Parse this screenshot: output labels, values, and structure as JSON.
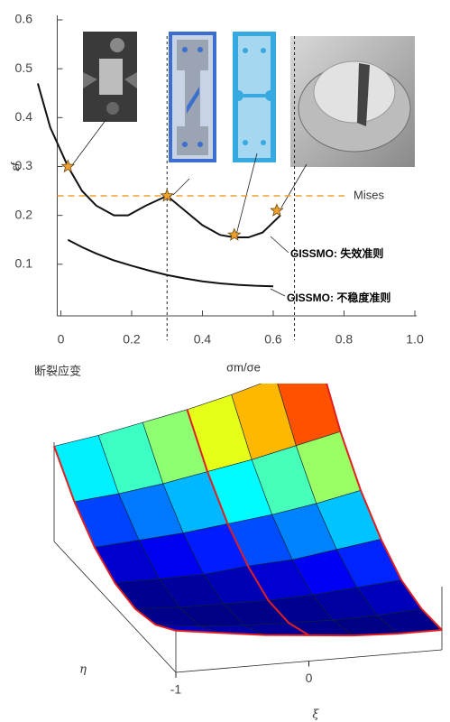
{
  "chart_data": [
    {
      "type": "line",
      "ylabel": "εf",
      "xlabel": "σm/σe",
      "caption": "断裂应变",
      "xlim": [
        -0.07,
        1.0
      ],
      "ylim": [
        0,
        0.6
      ],
      "xticks": [
        0,
        0.2,
        0.4,
        0.6,
        0.8,
        {
          "value": 1,
          "label": "1.0"
        }
      ],
      "yticks": [
        0.1,
        0.2,
        0.3,
        0.4,
        0.5,
        0.6
      ],
      "series": [
        {
          "name": "GISSMO: 失效准则",
          "color": "#111111",
          "x": [
            -0.065,
            -0.03,
            0.02,
            0.06,
            0.1,
            0.15,
            0.19,
            0.24,
            0.3,
            0.35,
            0.4,
            0.45,
            0.49,
            0.53,
            0.57,
            0.62
          ],
          "values": [
            0.47,
            0.38,
            0.3,
            0.25,
            0.22,
            0.2,
            0.2,
            0.22,
            0.24,
            0.21,
            0.18,
            0.16,
            0.155,
            0.155,
            0.165,
            0.2
          ]
        },
        {
          "name": "GISSMO: 不稳度准则",
          "color": "#111111",
          "x": [
            0.02,
            0.06,
            0.1,
            0.15,
            0.2,
            0.25,
            0.3,
            0.35,
            0.4,
            0.45,
            0.5,
            0.55,
            0.6
          ],
          "values": [
            0.15,
            0.135,
            0.122,
            0.108,
            0.097,
            0.087,
            0.078,
            0.071,
            0.065,
            0.061,
            0.058,
            0.056,
            0.055
          ]
        }
      ],
      "stars": {
        "color": "#f0a030",
        "x": [
          0.02,
          0.3,
          0.49,
          0.61
        ],
        "values": [
          0.3,
          0.24,
          0.16,
          0.21
        ]
      },
      "mises": {
        "label": "Mises",
        "value": 0.24,
        "color": "#f0a030"
      },
      "vlines": [
        0.3,
        0.66
      ]
    },
    {
      "type": "surface",
      "xlabel": "ξ",
      "ylabel": "η",
      "xlim": [
        -1,
        1
      ],
      "xticks": [
        -1,
        0
      ],
      "z": [
        [
          0.21,
          0.18,
          0.15,
          0.13,
          0.11,
          0.1,
          0.1
        ],
        [
          0.13,
          0.11,
          0.1,
          0.1,
          0.1,
          0.11,
          0.13
        ],
        [
          0.1,
          0.1,
          0.11,
          0.12,
          0.14,
          0.17,
          0.2
        ],
        [
          0.12,
          0.14,
          0.16,
          0.2,
          0.23,
          0.28,
          0.33
        ],
        [
          0.19,
          0.23,
          0.27,
          0.32,
          0.37,
          0.43,
          0.5
        ],
        [
          0.31,
          0.36,
          0.42,
          0.49,
          0.56,
          0.64,
          0.72
        ],
        [
          0.48,
          0.55,
          0.63,
          0.71,
          0.8,
          0.9,
          1.0
        ]
      ],
      "edge_color": "#e02020"
    }
  ]
}
